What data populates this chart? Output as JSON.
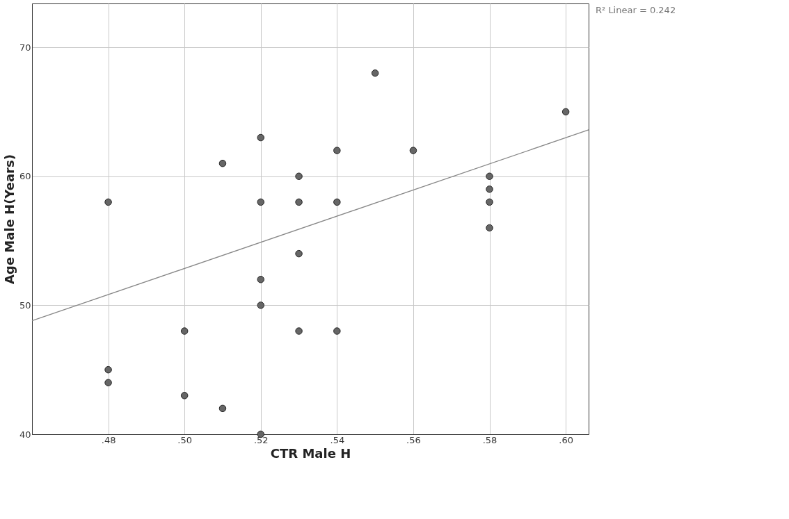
{
  "chart_data": {
    "type": "scatter",
    "xlabel": "CTR Male H",
    "ylabel": "Age Male H(Years)",
    "xlim": [
      0.46,
      0.606
    ],
    "ylim": [
      40,
      73.4
    ],
    "xticks": [
      {
        "value": 0.48,
        "label": ".48"
      },
      {
        "value": 0.5,
        "label": ".50"
      },
      {
        "value": 0.52,
        "label": ".52"
      },
      {
        "value": 0.54,
        "label": ".54"
      },
      {
        "value": 0.56,
        "label": ".56"
      },
      {
        "value": 0.58,
        "label": ".58"
      },
      {
        "value": 0.6,
        "label": ".60"
      }
    ],
    "yticks": [
      40,
      50,
      60,
      70
    ],
    "grid": true,
    "annotations": [
      "R² Linear = 0.242"
    ],
    "series": [
      {
        "type": "scatter",
        "marker": "circle",
        "color": "#666666",
        "x": [
          0.48,
          0.48,
          0.48,
          0.5,
          0.5,
          0.51,
          0.51,
          0.52,
          0.52,
          0.52,
          0.52,
          0.52,
          0.53,
          0.53,
          0.53,
          0.53,
          0.54,
          0.54,
          0.54,
          0.55,
          0.56,
          0.58,
          0.58,
          0.58,
          0.58,
          0.6
        ],
        "values": [
          58,
          45,
          44,
          48,
          43,
          61,
          42,
          63,
          58,
          52,
          50,
          40,
          60,
          58,
          54,
          48,
          62,
          58,
          48,
          68,
          62,
          60,
          59,
          58,
          56,
          65
        ]
      },
      {
        "type": "line",
        "marker": "none",
        "line_style": "solid",
        "color": "#888888",
        "x": [
          0.46,
          0.606
        ],
        "values": [
          48.8,
          63.6
        ]
      }
    ]
  }
}
